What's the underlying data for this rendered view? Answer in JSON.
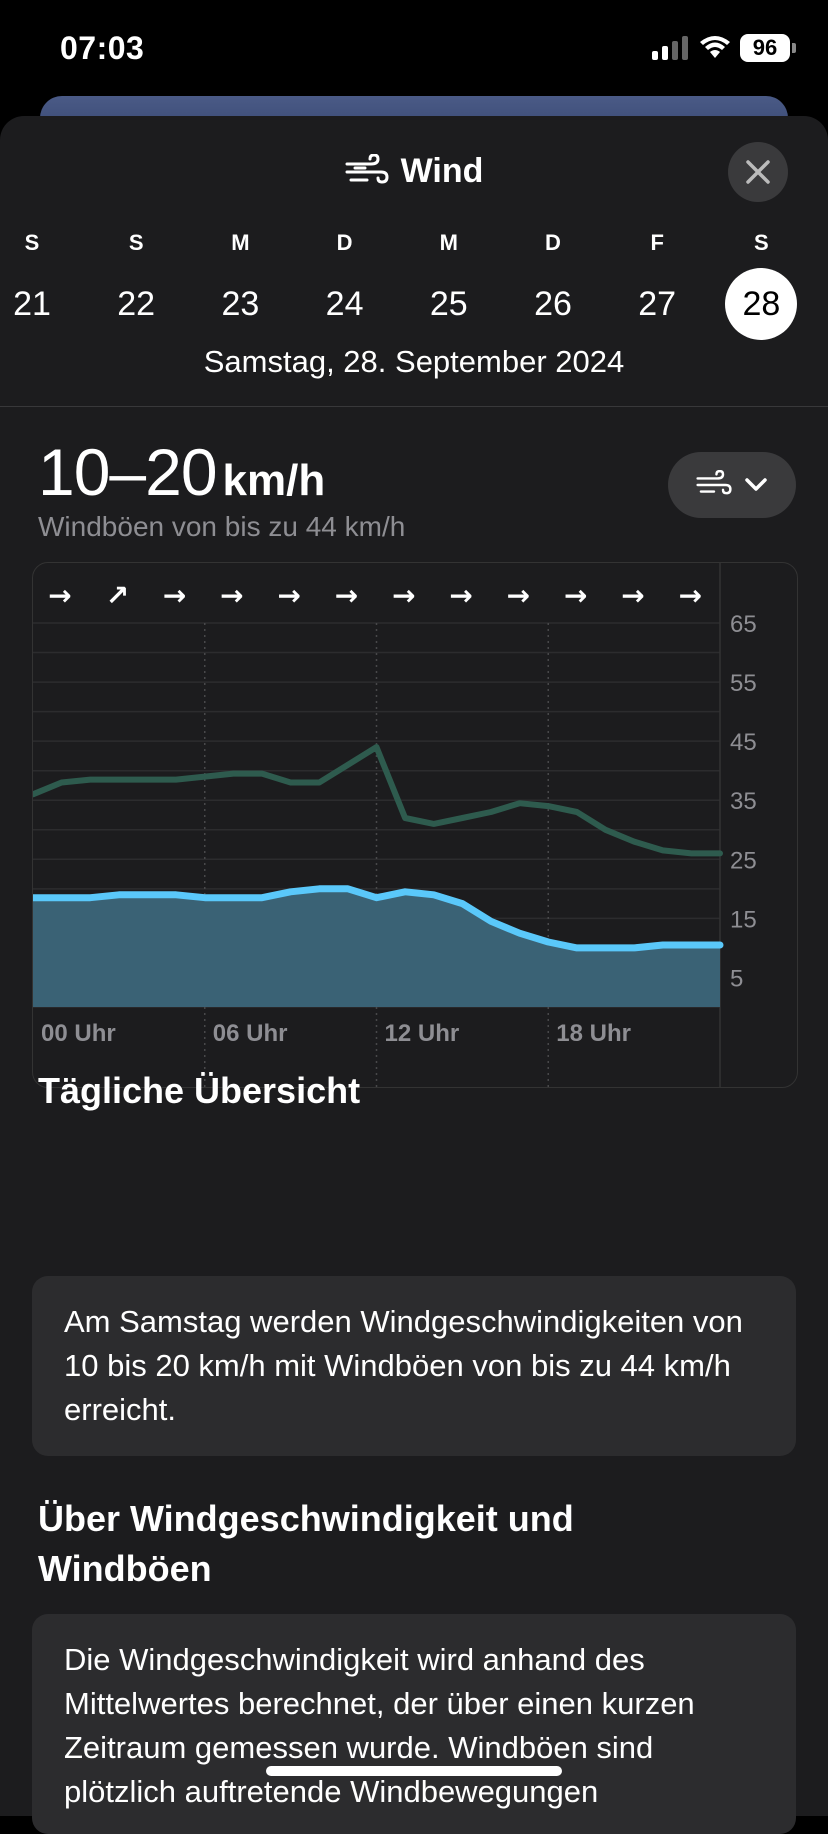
{
  "status": {
    "time": "07:03",
    "battery": "96"
  },
  "header": {
    "title": "Wind",
    "icon": "wind-icon",
    "close_icon": "close-icon"
  },
  "days": [
    {
      "wd": "S",
      "num": "21",
      "selected": false
    },
    {
      "wd": "S",
      "num": "22",
      "selected": false
    },
    {
      "wd": "M",
      "num": "23",
      "selected": false
    },
    {
      "wd": "D",
      "num": "24",
      "selected": false
    },
    {
      "wd": "M",
      "num": "25",
      "selected": false
    },
    {
      "wd": "D",
      "num": "26",
      "selected": false
    },
    {
      "wd": "F",
      "num": "27",
      "selected": false
    },
    {
      "wd": "S",
      "num": "28",
      "selected": true
    }
  ],
  "selected_date": "Samstag, 28. September 2024",
  "summary": {
    "range": "10–20",
    "unit": "km/h",
    "gust_text": "Windböen von bis zu 44 km/h"
  },
  "chart_data": {
    "type": "area",
    "x_labels": [
      "00 Uhr",
      "06 Uhr",
      "12 Uhr",
      "18 Uhr"
    ],
    "y_ticks": [
      65,
      55,
      45,
      35,
      25,
      15,
      5
    ],
    "ylim": [
      0,
      65
    ],
    "xlim": [
      0,
      24
    ],
    "direction_arrows": [
      "→",
      "↗",
      "→",
      "→",
      "→",
      "→",
      "→",
      "→",
      "→",
      "→",
      "→",
      "→"
    ],
    "series": [
      {
        "key": "gusts",
        "color": "#2e5b4e",
        "x": [
          0,
          1,
          2,
          3,
          4,
          5,
          6,
          7,
          8,
          9,
          10,
          11,
          12,
          13,
          14,
          15,
          16,
          17,
          18,
          19,
          20,
          21,
          22,
          23,
          24
        ],
        "values": [
          36,
          38,
          38.5,
          38.5,
          38.5,
          38.5,
          39,
          39.5,
          39.5,
          38,
          38,
          41,
          44,
          32,
          31,
          32,
          33,
          34.5,
          34,
          33,
          30,
          28,
          26.5,
          26,
          26
        ]
      },
      {
        "key": "speed",
        "color": "#5ac8fa",
        "fill": "#3a6275",
        "x": [
          0,
          1,
          2,
          3,
          4,
          5,
          6,
          7,
          8,
          9,
          10,
          11,
          12,
          13,
          14,
          15,
          16,
          17,
          18,
          19,
          20,
          21,
          22,
          23,
          24
        ],
        "values": [
          18.5,
          18.5,
          18.5,
          19,
          19,
          19,
          18.5,
          18.5,
          18.5,
          19.5,
          20,
          20,
          18.5,
          19.5,
          19,
          17.5,
          14.5,
          12.5,
          11,
          10,
          10,
          10,
          10.5,
          10.5,
          10.5
        ]
      }
    ]
  },
  "daily": {
    "heading": "Tägliche Übersicht",
    "text": "Am Samstag werden Windgeschwindigkeiten von 10 bis 20 km/h mit Windböen von bis zu 44 km/h erreicht."
  },
  "about": {
    "heading": "Über Windgeschwindigkeit und Windböen",
    "text": "Die Windgeschwindigkeit wird anhand des Mittelwertes berechnet, der über einen kurzen Zeitraum gemessen wurde. Windböen sind plötzlich auftretende Windbewegungen"
  }
}
